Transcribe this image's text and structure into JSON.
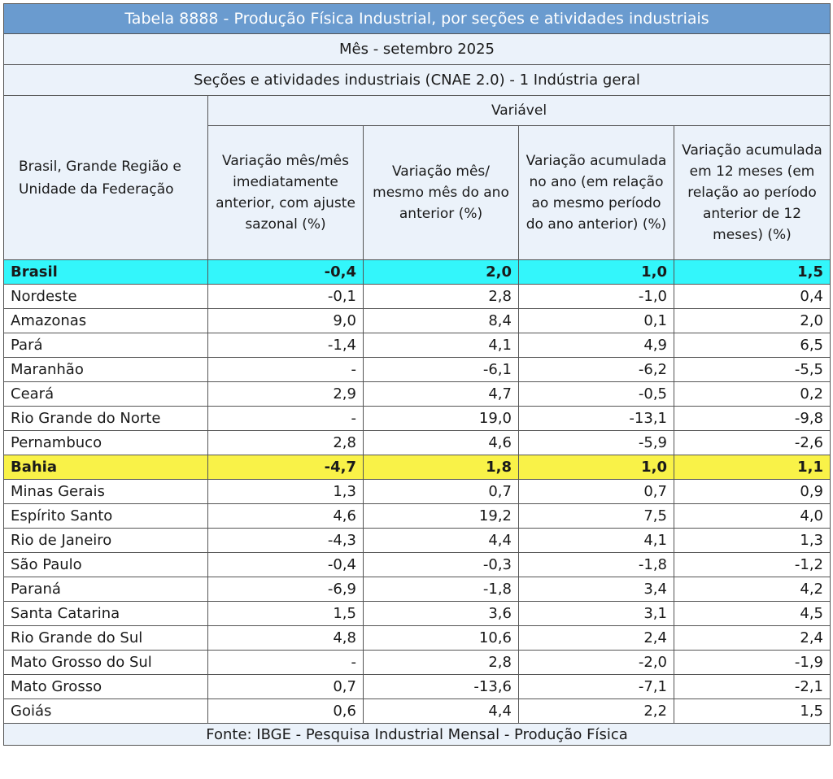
{
  "table": {
    "title": "Tabela 8888 - Produção Física Industrial, por seções e atividades industriais",
    "month": "Mês - setembro 2025",
    "section": "Seções e atividades industriais (CNAE 2.0) - 1 Indústria geral",
    "row_header": "Brasil, Grande Região e Unidade da Federação",
    "variable_header": "Variável",
    "columns": [
      "Variação mês/mês imediatamente anterior, com ajuste sazonal (%)",
      "Variação mês/ mesmo mês do ano anterior (%)",
      "Variação acumulada no ano (em relação ao mesmo período do ano anterior) (%)",
      "Variação acumulada em 12 meses (em relação ao período anterior de 12 meses) (%)"
    ],
    "rows": [
      {
        "name": "Brasil",
        "values": [
          "-0,4",
          "2,0",
          "1,0",
          "1,5"
        ],
        "highlight": "brasil"
      },
      {
        "name": "Nordeste",
        "values": [
          "-0,1",
          "2,8",
          "-1,0",
          "0,4"
        ],
        "highlight": ""
      },
      {
        "name": "Amazonas",
        "values": [
          "9,0",
          "8,4",
          "0,1",
          "2,0"
        ],
        "highlight": ""
      },
      {
        "name": "Pará",
        "values": [
          "-1,4",
          "4,1",
          "4,9",
          "6,5"
        ],
        "highlight": ""
      },
      {
        "name": "Maranhão",
        "values": [
          "-",
          "-6,1",
          "-6,2",
          "-5,5"
        ],
        "highlight": ""
      },
      {
        "name": "Ceará",
        "values": [
          "2,9",
          "4,7",
          "-0,5",
          "0,2"
        ],
        "highlight": ""
      },
      {
        "name": "Rio Grande do Norte",
        "values": [
          "-",
          "19,0",
          "-13,1",
          "-9,8"
        ],
        "highlight": ""
      },
      {
        "name": "Pernambuco",
        "values": [
          "2,8",
          "4,6",
          "-5,9",
          "-2,6"
        ],
        "highlight": ""
      },
      {
        "name": "Bahia",
        "values": [
          "-4,7",
          "1,8",
          "1,0",
          "1,1"
        ],
        "highlight": "bahia"
      },
      {
        "name": "Minas Gerais",
        "values": [
          "1,3",
          "0,7",
          "0,7",
          "0,9"
        ],
        "highlight": ""
      },
      {
        "name": "Espírito Santo",
        "values": [
          "4,6",
          "19,2",
          "7,5",
          "4,0"
        ],
        "highlight": ""
      },
      {
        "name": "Rio de Janeiro",
        "values": [
          "-4,3",
          "4,4",
          "4,1",
          "1,3"
        ],
        "highlight": ""
      },
      {
        "name": "São Paulo",
        "values": [
          "-0,4",
          "-0,3",
          "-1,8",
          "-1,2"
        ],
        "highlight": ""
      },
      {
        "name": "Paraná",
        "values": [
          "-6,9",
          "-1,8",
          "3,4",
          "4,2"
        ],
        "highlight": ""
      },
      {
        "name": "Santa Catarina",
        "values": [
          "1,5",
          "3,6",
          "3,1",
          "4,5"
        ],
        "highlight": ""
      },
      {
        "name": "Rio Grande do Sul",
        "values": [
          "4,8",
          "10,6",
          "2,4",
          "2,4"
        ],
        "highlight": ""
      },
      {
        "name": "Mato Grosso do Sul",
        "values": [
          "-",
          "2,8",
          "-2,0",
          "-1,9"
        ],
        "highlight": ""
      },
      {
        "name": "Mato Grosso",
        "values": [
          "0,7",
          "-13,6",
          "-7,1",
          "-2,1"
        ],
        "highlight": ""
      },
      {
        "name": "Goiás",
        "values": [
          "0,6",
          "4,4",
          "2,2",
          "1,5"
        ],
        "highlight": ""
      }
    ],
    "source": "Fonte: IBGE - Pesquisa Industrial Mensal - Produção Física"
  },
  "colors": {
    "title_bg": "#6a9bcf",
    "header_bg": "#ebf2fa",
    "brasil_highlight": "#33f6fb",
    "bahia_highlight": "#f9f248"
  }
}
